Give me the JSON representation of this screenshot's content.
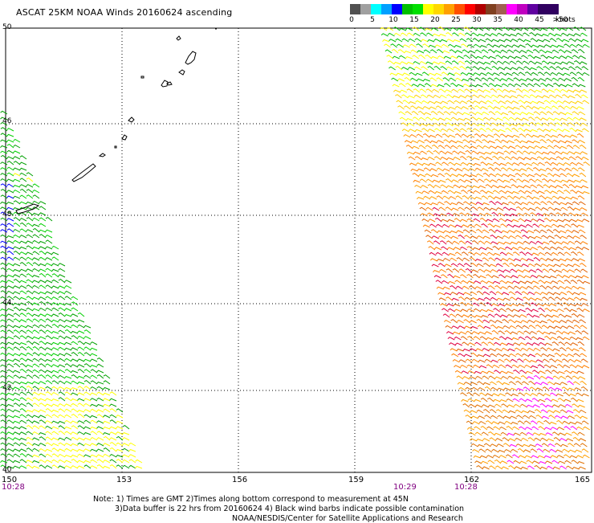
{
  "title": "ASCAT 25KM NOAA Winds 20160624 ascending",
  "map": {
    "lat_labels": [
      {
        "value": "50"
      },
      {
        "value": "48"
      },
      {
        "value": "46"
      },
      {
        "value": "44"
      },
      {
        "value": "42"
      },
      {
        "value": "40"
      }
    ],
    "lon_labels": [
      {
        "value": "150"
      },
      {
        "value": "153"
      },
      {
        "value": "156"
      },
      {
        "value": "159"
      },
      {
        "value": "162"
      },
      {
        "value": "165"
      }
    ],
    "pass_times": [
      {
        "value": "10:28"
      },
      {
        "value": "10:29"
      },
      {
        "value": "10:28"
      }
    ],
    "lat_range": [
      40,
      50
    ],
    "lon_range": [
      150,
      165
    ]
  },
  "legend": {
    "ticks": [
      "0",
      "5",
      "10",
      "15",
      "20",
      "25",
      "30",
      "35",
      "40",
      "45",
      ">50"
    ],
    "units": "knots",
    "colors": [
      "#707070",
      "#b0b0b0",
      "#00e0ff",
      "#0080ff",
      "#0000ff",
      "#00a000",
      "#00e000",
      "#ffff00",
      "#ffd000",
      "#ffa000",
      "#ff6000",
      "#ff0000",
      "#c00000",
      "#a06040",
      "#804020",
      "#ff00ff",
      "#c000c0",
      "#8000ff",
      "#400080"
    ]
  },
  "notes": {
    "line1": "Note: 1) Times are GMT 2)Times along bottom correspond to measurement at 45N",
    "line2": "3)Data buffer is 22 hrs from 20160624 4) Black wind barbs indicate possible contamination",
    "line3": "NOAA/NESDIS/Center for Satellite Applications and Research"
  },
  "colors": {
    "grid": "#000000",
    "coast": "#000000",
    "time_text": "#800080"
  }
}
